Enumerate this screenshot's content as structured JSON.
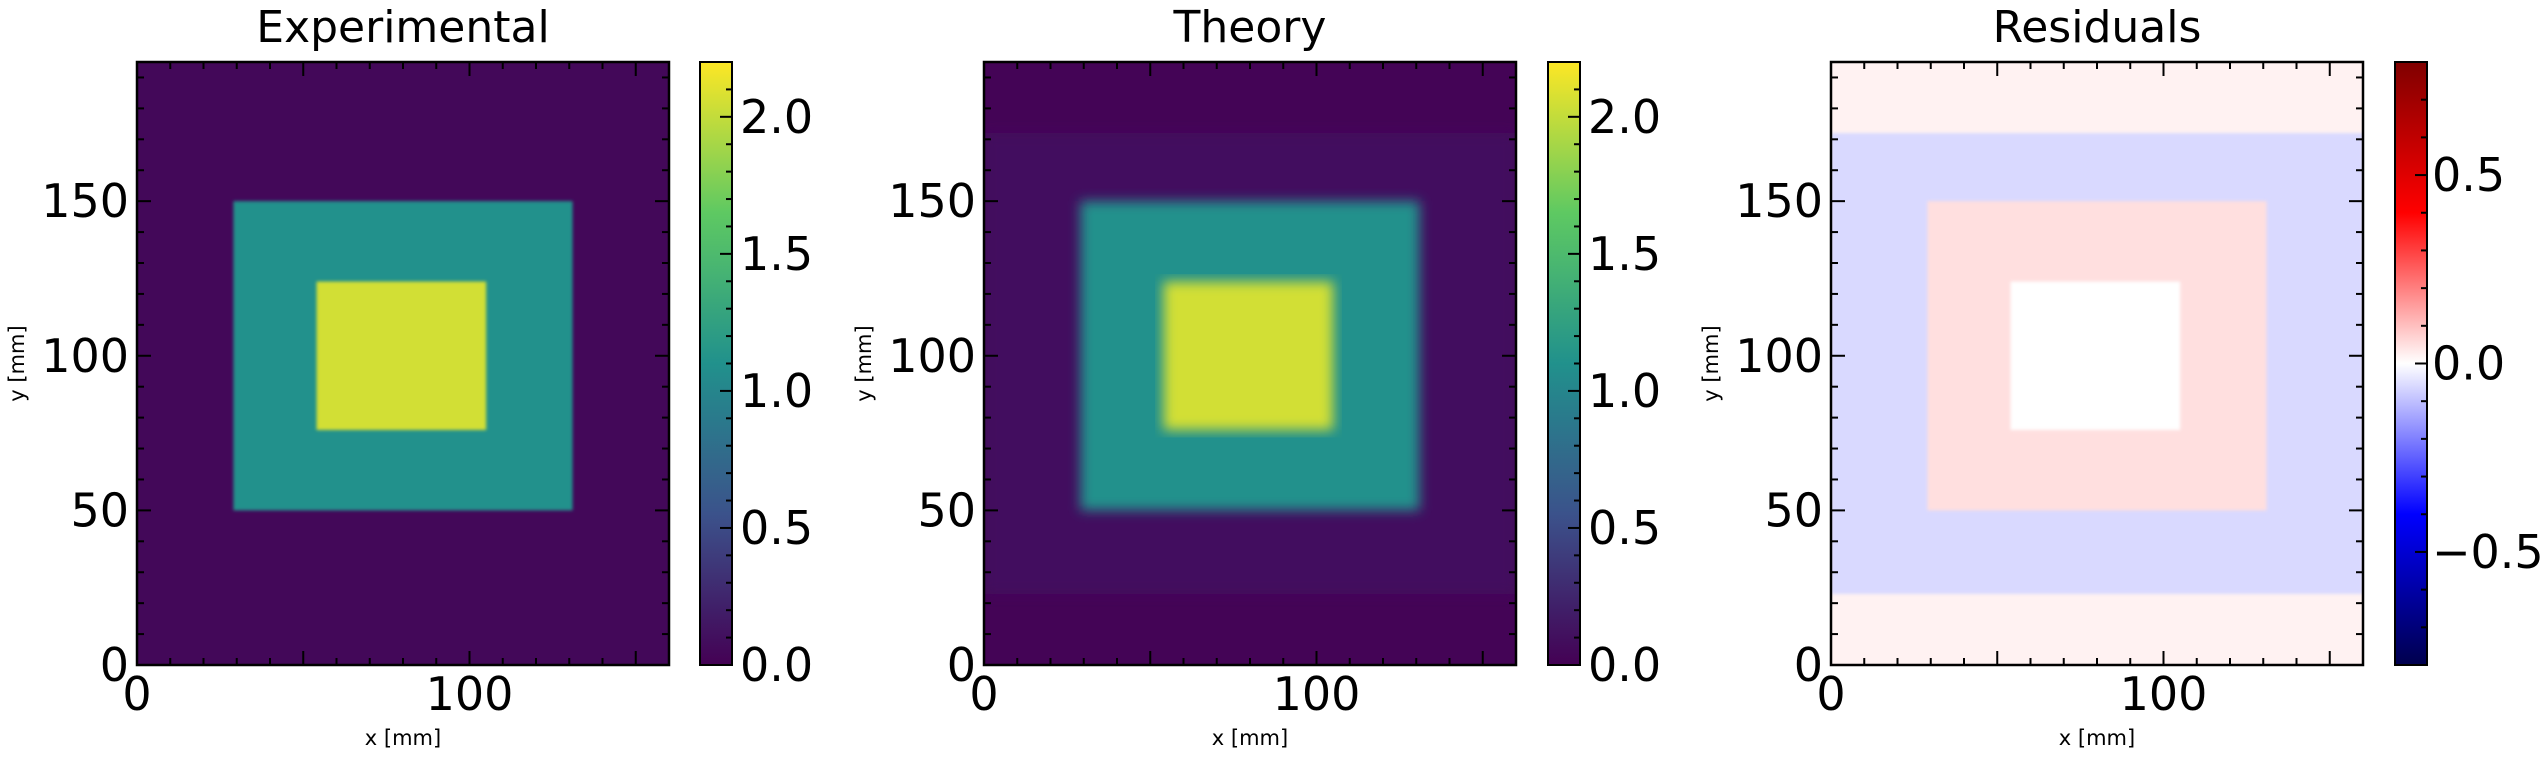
{
  "chart_data": [
    {
      "type": "heatmap",
      "title": "Experimental",
      "xlabel": "x [mm]",
      "ylabel": "y [mm]",
      "xlim": [
        0,
        160
      ],
      "ylim": [
        0,
        195
      ],
      "xticks": [
        0,
        100
      ],
      "yticks": [
        0,
        50,
        100,
        150
      ],
      "colormap": "viridis",
      "colorbar": {
        "range": [
          0,
          2.2
        ],
        "ticks": [
          "0.0",
          "0.5",
          "1.0",
          "1.5",
          "2.0"
        ]
      },
      "regions": [
        {
          "name": "background",
          "x": [
            0,
            160
          ],
          "y": [
            0,
            195
          ],
          "value": 0.05
        },
        {
          "name": "outer square",
          "x": [
            29,
            131
          ],
          "y": [
            50,
            150
          ],
          "value": 1.1
        },
        {
          "name": "inner square",
          "x": [
            54,
            105
          ],
          "y": [
            76,
            124
          ],
          "value": 2.05
        }
      ]
    },
    {
      "type": "heatmap",
      "title": "Theory",
      "xlabel": "x [mm]",
      "ylabel": "y [mm]",
      "xlim": [
        0,
        160
      ],
      "ylim": [
        0,
        195
      ],
      "xticks": [
        0,
        100
      ],
      "yticks": [
        0,
        50,
        100,
        150
      ],
      "colormap": "viridis",
      "colorbar": {
        "range": [
          0,
          2.2
        ],
        "ticks": [
          "0.0",
          "0.5",
          "1.0",
          "1.5",
          "2.0"
        ]
      },
      "regions": [
        {
          "name": "background",
          "x": [
            0,
            160
          ],
          "y": [
            0,
            195
          ],
          "value": 0.02
        },
        {
          "name": "plateau",
          "x": [
            0,
            160
          ],
          "y": [
            23,
            172
          ],
          "value": 0.1
        },
        {
          "name": "outer square",
          "x": [
            29,
            131
          ],
          "y": [
            50,
            150
          ],
          "value": 1.1
        },
        {
          "name": "inner square",
          "x": [
            54,
            105
          ],
          "y": [
            76,
            124
          ],
          "value": 2.05
        }
      ]
    },
    {
      "type": "heatmap",
      "title": "Residuals",
      "xlabel": "x [mm]",
      "ylabel": "y [mm]",
      "xlim": [
        0,
        160
      ],
      "ylim": [
        0,
        195
      ],
      "xticks": [
        0,
        100
      ],
      "yticks": [
        0,
        50,
        100,
        150
      ],
      "colormap": "seismic",
      "colorbar": {
        "range": [
          -0.8,
          0.8
        ],
        "ticks": [
          "−0.5",
          "0.0",
          "0.5"
        ]
      },
      "regions": [
        {
          "name": "background",
          "x": [
            0,
            160
          ],
          "y": [
            0,
            195
          ],
          "value": 0.02
        },
        {
          "name": "plateau",
          "x": [
            0,
            160
          ],
          "y": [
            23,
            172
          ],
          "value": -0.06
        },
        {
          "name": "outer square",
          "x": [
            29,
            131
          ],
          "y": [
            50,
            150
          ],
          "value": 0.05
        },
        {
          "name": "inner square",
          "x": [
            54,
            105
          ],
          "y": [
            76,
            124
          ],
          "value": 0.0
        }
      ]
    }
  ]
}
